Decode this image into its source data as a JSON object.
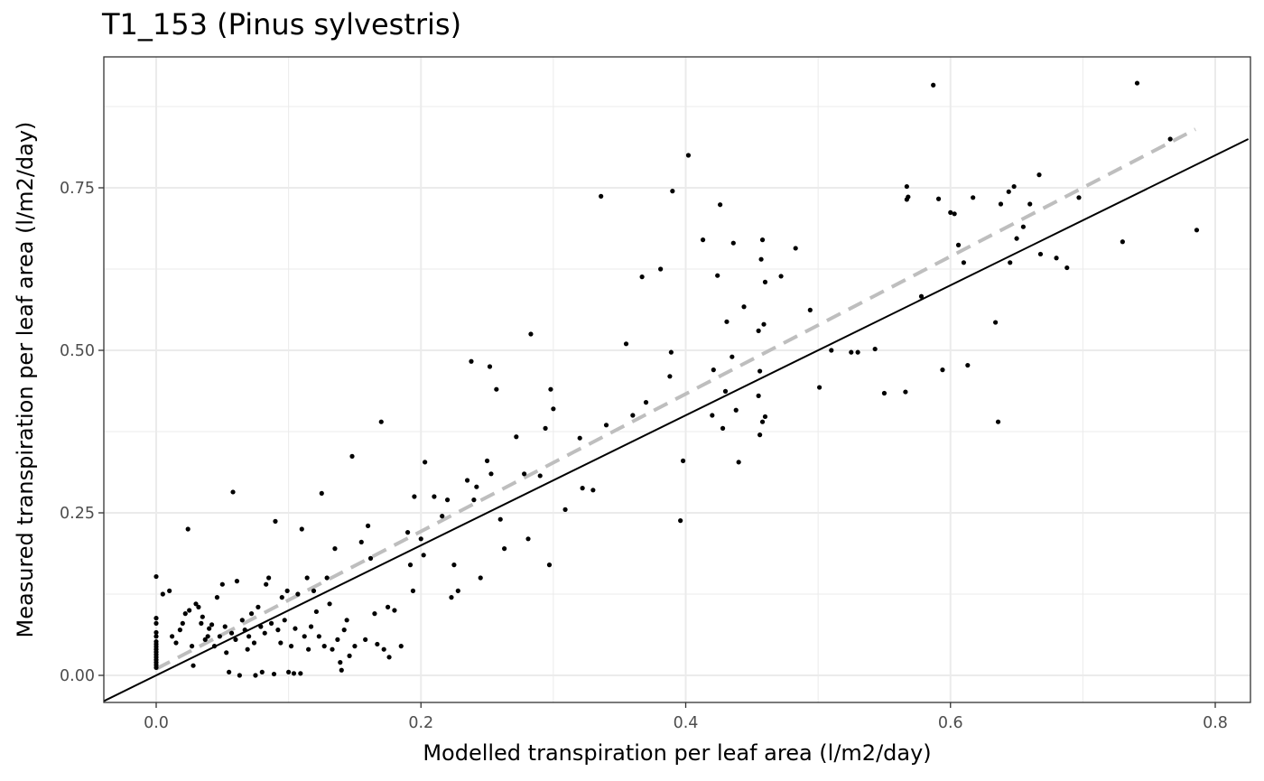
{
  "chart_data": {
    "type": "scatter",
    "title": "T1_153 (Pinus sylvestris)",
    "xlabel": "Modelled transpiration per leaf area (l/m2/day)",
    "ylabel": "Measured transpiration per leaf area (l/m2/day)",
    "xlim": [
      -0.04,
      0.825
    ],
    "ylim": [
      -0.04,
      0.95
    ],
    "x_ticks": [
      0.0,
      0.2,
      0.4,
      0.6,
      0.8
    ],
    "x_tick_labels": [
      "0.0",
      "0.2",
      "0.4",
      "0.6",
      "0.8"
    ],
    "y_ticks": [
      0.0,
      0.25,
      0.5,
      0.75
    ],
    "y_tick_labels": [
      "0.00",
      "0.25",
      "0.50",
      "0.75"
    ],
    "grid": true,
    "reference_line": {
      "type": "1:1",
      "slope": 1,
      "intercept": 0,
      "color": "#000000",
      "style": "solid"
    },
    "fit_line": {
      "x": [
        0.0,
        0.785
      ],
      "y": [
        0.01,
        0.84
      ],
      "color": "#bebebe",
      "style": "dashed"
    },
    "point_color": "#000000",
    "points": [
      [
        0.0,
        0.152
      ],
      [
        0.0,
        0.088
      ],
      [
        0.0,
        0.08
      ],
      [
        0.0,
        0.066
      ],
      [
        0.0,
        0.06
      ],
      [
        0.0,
        0.052
      ],
      [
        0.0,
        0.048
      ],
      [
        0.0,
        0.044
      ],
      [
        0.0,
        0.04
      ],
      [
        0.0,
        0.036
      ],
      [
        0.0,
        0.032
      ],
      [
        0.0,
        0.028
      ],
      [
        0.0,
        0.024
      ],
      [
        0.0,
        0.02
      ],
      [
        0.0,
        0.016
      ],
      [
        0.0,
        0.012
      ],
      [
        0.005,
        0.125
      ],
      [
        0.01,
        0.13
      ],
      [
        0.012,
        0.06
      ],
      [
        0.015,
        0.05
      ],
      [
        0.018,
        0.07
      ],
      [
        0.02,
        0.08
      ],
      [
        0.022,
        0.095
      ],
      [
        0.024,
        0.225
      ],
      [
        0.025,
        0.1
      ],
      [
        0.027,
        0.045
      ],
      [
        0.028,
        0.015
      ],
      [
        0.03,
        0.11
      ],
      [
        0.032,
        0.105
      ],
      [
        0.034,
        0.08
      ],
      [
        0.035,
        0.09
      ],
      [
        0.037,
        0.055
      ],
      [
        0.039,
        0.06
      ],
      [
        0.04,
        0.072
      ],
      [
        0.042,
        0.078
      ],
      [
        0.044,
        0.045
      ],
      [
        0.046,
        0.12
      ],
      [
        0.048,
        0.06
      ],
      [
        0.05,
        0.14
      ],
      [
        0.052,
        0.075
      ],
      [
        0.053,
        0.035
      ],
      [
        0.055,
        0.005
      ],
      [
        0.057,
        0.065
      ],
      [
        0.058,
        0.282
      ],
      [
        0.06,
        0.055
      ],
      [
        0.061,
        0.145
      ],
      [
        0.063,
        0.0
      ],
      [
        0.065,
        0.085
      ],
      [
        0.067,
        0.07
      ],
      [
        0.069,
        0.04
      ],
      [
        0.07,
        0.06
      ],
      [
        0.072,
        0.095
      ],
      [
        0.074,
        0.05
      ],
      [
        0.075,
        0.0
      ],
      [
        0.077,
        0.105
      ],
      [
        0.079,
        0.075
      ],
      [
        0.08,
        0.005
      ],
      [
        0.082,
        0.065
      ],
      [
        0.083,
        0.14
      ],
      [
        0.085,
        0.15
      ],
      [
        0.087,
        0.08
      ],
      [
        0.089,
        0.002
      ],
      [
        0.09,
        0.237
      ],
      [
        0.092,
        0.07
      ],
      [
        0.094,
        0.05
      ],
      [
        0.095,
        0.12
      ],
      [
        0.097,
        0.085
      ],
      [
        0.099,
        0.13
      ],
      [
        0.1,
        0.005
      ],
      [
        0.102,
        0.045
      ],
      [
        0.104,
        0.003
      ],
      [
        0.105,
        0.072
      ],
      [
        0.107,
        0.125
      ],
      [
        0.109,
        0.003
      ],
      [
        0.11,
        0.225
      ],
      [
        0.112,
        0.06
      ],
      [
        0.114,
        0.15
      ],
      [
        0.115,
        0.04
      ],
      [
        0.117,
        0.075
      ],
      [
        0.119,
        0.13
      ],
      [
        0.121,
        0.098
      ],
      [
        0.123,
        0.06
      ],
      [
        0.125,
        0.28
      ],
      [
        0.127,
        0.045
      ],
      [
        0.129,
        0.15
      ],
      [
        0.131,
        0.11
      ],
      [
        0.133,
        0.04
      ],
      [
        0.135,
        0.195
      ],
      [
        0.137,
        0.055
      ],
      [
        0.139,
        0.02
      ],
      [
        0.14,
        0.008
      ],
      [
        0.142,
        0.07
      ],
      [
        0.144,
        0.085
      ],
      [
        0.146,
        0.03
      ],
      [
        0.148,
        0.337
      ],
      [
        0.15,
        0.045
      ],
      [
        0.155,
        0.205
      ],
      [
        0.158,
        0.055
      ],
      [
        0.16,
        0.23
      ],
      [
        0.162,
        0.18
      ],
      [
        0.165,
        0.095
      ],
      [
        0.167,
        0.048
      ],
      [
        0.17,
        0.39
      ],
      [
        0.172,
        0.04
      ],
      [
        0.175,
        0.105
      ],
      [
        0.176,
        0.028
      ],
      [
        0.18,
        0.1
      ],
      [
        0.185,
        0.045
      ],
      [
        0.19,
        0.22
      ],
      [
        0.192,
        0.17
      ],
      [
        0.194,
        0.13
      ],
      [
        0.195,
        0.275
      ],
      [
        0.2,
        0.21
      ],
      [
        0.202,
        0.185
      ],
      [
        0.203,
        0.328
      ],
      [
        0.21,
        0.275
      ],
      [
        0.216,
        0.245
      ],
      [
        0.22,
        0.27
      ],
      [
        0.223,
        0.12
      ],
      [
        0.225,
        0.17
      ],
      [
        0.228,
        0.13
      ],
      [
        0.235,
        0.3
      ],
      [
        0.238,
        0.483
      ],
      [
        0.24,
        0.27
      ],
      [
        0.242,
        0.29
      ],
      [
        0.245,
        0.15
      ],
      [
        0.25,
        0.33
      ],
      [
        0.252,
        0.475
      ],
      [
        0.253,
        0.31
      ],
      [
        0.257,
        0.44
      ],
      [
        0.26,
        0.24
      ],
      [
        0.263,
        0.195
      ],
      [
        0.272,
        0.367
      ],
      [
        0.278,
        0.31
      ],
      [
        0.281,
        0.21
      ],
      [
        0.283,
        0.525
      ],
      [
        0.29,
        0.307
      ],
      [
        0.294,
        0.38
      ],
      [
        0.297,
        0.17
      ],
      [
        0.298,
        0.44
      ],
      [
        0.3,
        0.41
      ],
      [
        0.309,
        0.255
      ],
      [
        0.32,
        0.365
      ],
      [
        0.322,
        0.288
      ],
      [
        0.33,
        0.285
      ],
      [
        0.336,
        0.737
      ],
      [
        0.34,
        0.385
      ],
      [
        0.355,
        0.51
      ],
      [
        0.36,
        0.4
      ],
      [
        0.367,
        0.613
      ],
      [
        0.37,
        0.42
      ],
      [
        0.381,
        0.625
      ],
      [
        0.388,
        0.46
      ],
      [
        0.389,
        0.497
      ],
      [
        0.39,
        0.745
      ],
      [
        0.396,
        0.238
      ],
      [
        0.398,
        0.33
      ],
      [
        0.402,
        0.8
      ],
      [
        0.413,
        0.67
      ],
      [
        0.42,
        0.4
      ],
      [
        0.421,
        0.47
      ],
      [
        0.424,
        0.615
      ],
      [
        0.426,
        0.724
      ],
      [
        0.428,
        0.38
      ],
      [
        0.43,
        0.437
      ],
      [
        0.431,
        0.544
      ],
      [
        0.435,
        0.49
      ],
      [
        0.436,
        0.665
      ],
      [
        0.438,
        0.408
      ],
      [
        0.44,
        0.328
      ],
      [
        0.444,
        0.567
      ],
      [
        0.455,
        0.43
      ],
      [
        0.455,
        0.53
      ],
      [
        0.456,
        0.37
      ],
      [
        0.456,
        0.468
      ],
      [
        0.457,
        0.64
      ],
      [
        0.458,
        0.67
      ],
      [
        0.458,
        0.39
      ],
      [
        0.459,
        0.54
      ],
      [
        0.46,
        0.605
      ],
      [
        0.46,
        0.398
      ],
      [
        0.472,
        0.614
      ],
      [
        0.483,
        0.657
      ],
      [
        0.494,
        0.562
      ],
      [
        0.501,
        0.443
      ],
      [
        0.51,
        0.5
      ],
      [
        0.525,
        0.497
      ],
      [
        0.53,
        0.497
      ],
      [
        0.543,
        0.502
      ],
      [
        0.55,
        0.434
      ],
      [
        0.566,
        0.436
      ],
      [
        0.567,
        0.752
      ],
      [
        0.567,
        0.732
      ],
      [
        0.568,
        0.736
      ],
      [
        0.578,
        0.583
      ],
      [
        0.587,
        0.908
      ],
      [
        0.591,
        0.733
      ],
      [
        0.594,
        0.47
      ],
      [
        0.6,
        0.712
      ],
      [
        0.603,
        0.71
      ],
      [
        0.606,
        0.662
      ],
      [
        0.61,
        0.635
      ],
      [
        0.613,
        0.477
      ],
      [
        0.617,
        0.735
      ],
      [
        0.634,
        0.543
      ],
      [
        0.636,
        0.39
      ],
      [
        0.638,
        0.725
      ],
      [
        0.644,
        0.744
      ],
      [
        0.645,
        0.635
      ],
      [
        0.648,
        0.752
      ],
      [
        0.65,
        0.672
      ],
      [
        0.655,
        0.69
      ],
      [
        0.66,
        0.725
      ],
      [
        0.667,
        0.77
      ],
      [
        0.668,
        0.648
      ],
      [
        0.68,
        0.642
      ],
      [
        0.688,
        0.627
      ],
      [
        0.697,
        0.735
      ],
      [
        0.73,
        0.667
      ],
      [
        0.741,
        0.911
      ],
      [
        0.766,
        0.825
      ],
      [
        0.786,
        0.685
      ]
    ]
  }
}
